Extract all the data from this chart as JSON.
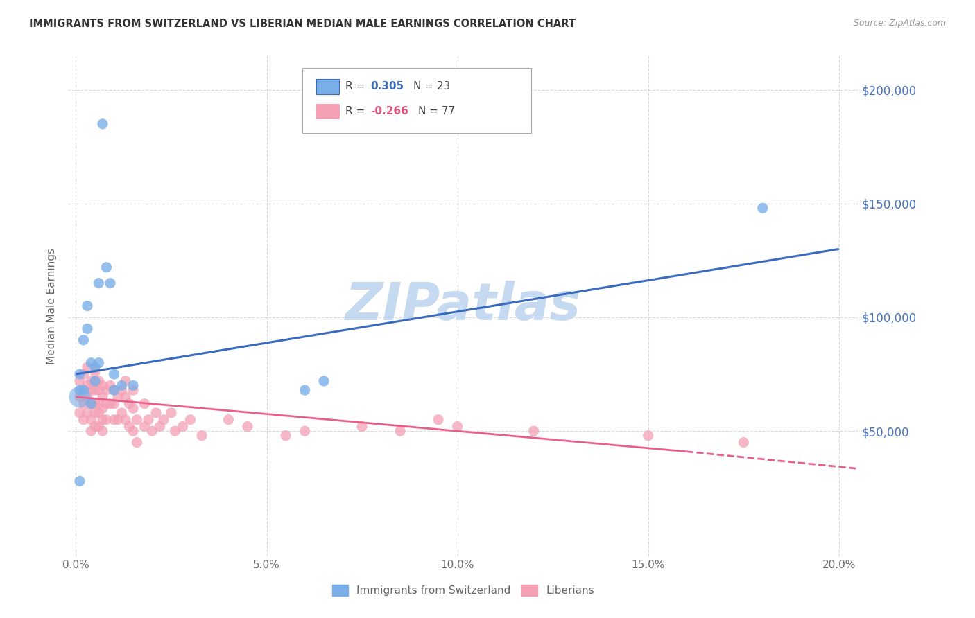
{
  "title": "IMMIGRANTS FROM SWITZERLAND VS LIBERIAN MEDIAN MALE EARNINGS CORRELATION CHART",
  "source": "Source: ZipAtlas.com",
  "ylabel": "Median Male Earnings",
  "y_ticks": [
    0,
    50000,
    100000,
    150000,
    200000
  ],
  "y_tick_labels": [
    "",
    "$50,000",
    "$100,000",
    "$150,000",
    "$200,000"
  ],
  "x_tick_labels": [
    "0.0%",
    "5.0%",
    "10.0%",
    "15.0%",
    "20.0%"
  ],
  "x_ticks": [
    0.0,
    0.05,
    0.1,
    0.15,
    0.2
  ],
  "xlim": [
    -0.002,
    0.205
  ],
  "ylim": [
    -5000,
    215000
  ],
  "series1_color": "#7aaee8",
  "series2_color": "#f4a0b5",
  "trend1_color": "#3a6bbf",
  "trend2_color": "#e8608a",
  "watermark": "ZIPatlas",
  "watermark_color": "#c5d9f0",
  "background_color": "#ffffff",
  "grid_color": "#d8d8d8",
  "title_color": "#333333",
  "axis_label_color": "#666666",
  "right_tick_color": "#4472c4",
  "series1_name": "Immigrants from Switzerland",
  "series2_name": "Liberians",
  "swiss_x": [
    0.001,
    0.007,
    0.001,
    0.002,
    0.003,
    0.003,
    0.004,
    0.005,
    0.002,
    0.006,
    0.008,
    0.009,
    0.01,
    0.012,
    0.065,
    0.18,
    0.004,
    0.005,
    0.006,
    0.01,
    0.015,
    0.06,
    0.001
  ],
  "swiss_y": [
    68000,
    185000,
    75000,
    90000,
    105000,
    95000,
    80000,
    78000,
    68000,
    115000,
    122000,
    115000,
    75000,
    70000,
    72000,
    148000,
    62000,
    72000,
    80000,
    68000,
    70000,
    68000,
    28000
  ],
  "liberian_x": [
    0.001,
    0.001,
    0.001,
    0.002,
    0.002,
    0.002,
    0.002,
    0.003,
    0.003,
    0.003,
    0.003,
    0.004,
    0.004,
    0.004,
    0.004,
    0.004,
    0.005,
    0.005,
    0.005,
    0.005,
    0.005,
    0.005,
    0.006,
    0.006,
    0.006,
    0.006,
    0.006,
    0.007,
    0.007,
    0.007,
    0.007,
    0.007,
    0.008,
    0.008,
    0.008,
    0.009,
    0.009,
    0.01,
    0.01,
    0.01,
    0.011,
    0.011,
    0.012,
    0.012,
    0.013,
    0.013,
    0.013,
    0.014,
    0.014,
    0.015,
    0.015,
    0.015,
    0.016,
    0.016,
    0.018,
    0.018,
    0.019,
    0.02,
    0.021,
    0.022,
    0.023,
    0.025,
    0.026,
    0.028,
    0.03,
    0.033,
    0.04,
    0.045,
    0.055,
    0.06,
    0.075,
    0.085,
    0.095,
    0.1,
    0.12,
    0.15,
    0.175
  ],
  "liberian_y": [
    65000,
    72000,
    58000,
    75000,
    68000,
    62000,
    55000,
    78000,
    70000,
    65000,
    58000,
    72000,
    68000,
    62000,
    55000,
    50000,
    76000,
    72000,
    68000,
    62000,
    58000,
    52000,
    72000,
    68000,
    62000,
    58000,
    52000,
    70000,
    65000,
    60000,
    55000,
    50000,
    68000,
    62000,
    55000,
    70000,
    62000,
    68000,
    62000,
    55000,
    65000,
    55000,
    68000,
    58000,
    72000,
    65000,
    55000,
    62000,
    52000,
    68000,
    60000,
    50000,
    55000,
    45000,
    62000,
    52000,
    55000,
    50000,
    58000,
    52000,
    55000,
    58000,
    50000,
    52000,
    55000,
    48000,
    55000,
    52000,
    48000,
    50000,
    52000,
    50000,
    55000,
    52000,
    50000,
    48000,
    45000
  ],
  "trend1_x0": 0.0,
  "trend1_y0": 75000,
  "trend1_x1": 0.2,
  "trend1_y1": 130000,
  "trend2_x0": 0.0,
  "trend2_y0": 65000,
  "trend2_x1": 0.2,
  "trend2_y1": 35000,
  "trend2_extend_x1": 0.205,
  "trend2_extend_y1": 33500
}
